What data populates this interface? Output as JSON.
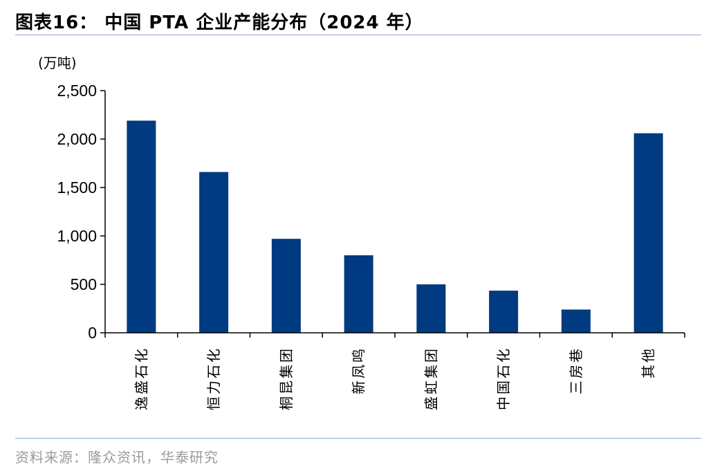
{
  "header": {
    "title": "图表16：  中国 PTA 企业产能分布（2024 年）"
  },
  "footer": {
    "source": "资料来源：隆众资讯，华泰研究"
  },
  "chart_data": {
    "type": "bar",
    "title": "中国 PTA 企业产能分布（2024 年）",
    "unit_label": "(万吨)",
    "categories": [
      "逸盛石化",
      "恒力石化",
      "桐昆集团",
      "新凤鸣",
      "盛虹集团",
      "中国石化",
      "三房巷",
      "其他"
    ],
    "series": [
      {
        "values": [
          2190,
          1660,
          970,
          800,
          500,
          435,
          240,
          2060
        ]
      }
    ],
    "ylim": [
      0,
      2500
    ],
    "yticks": [
      0,
      500,
      1000,
      1500,
      2000,
      2500
    ],
    "ytick_labels": [
      "0",
      "500",
      "1,000",
      "1,500",
      "2,000",
      "2,500"
    ],
    "bar_color": "#003a80",
    "grid": false,
    "legend": "none"
  }
}
